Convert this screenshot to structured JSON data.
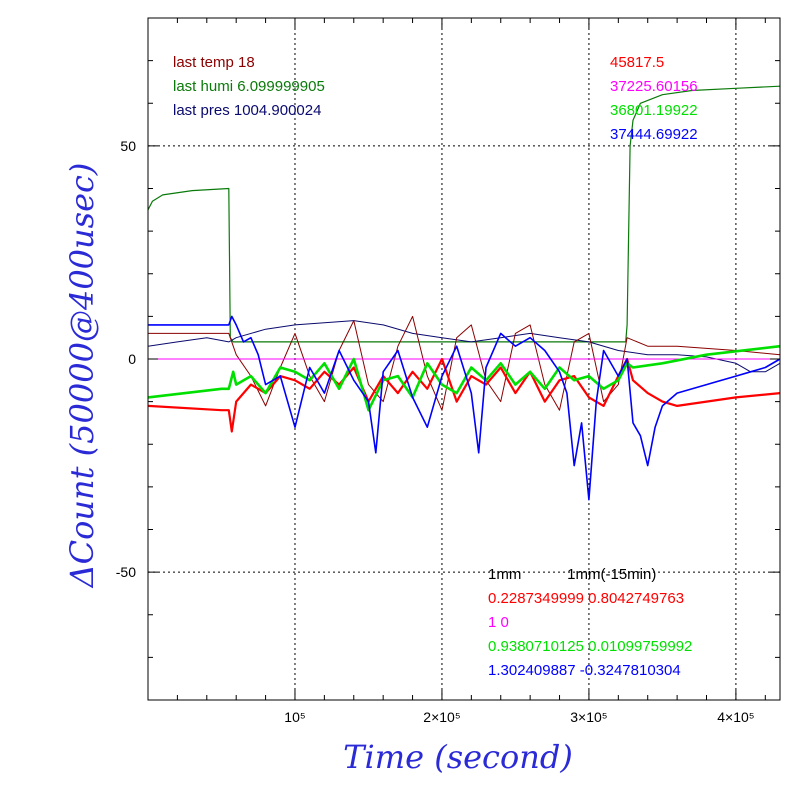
{
  "chart_data": {
    "type": "line",
    "xlabel": "Time (second)",
    "ylabel": "ΔCount (50000@400usec)",
    "xlim": [
      0,
      430000
    ],
    "ylim": [
      -80,
      80
    ],
    "x_ticks": [
      {
        "value": 100000,
        "label": "10⁵"
      },
      {
        "value": 200000,
        "label": "2×10⁵"
      },
      {
        "value": 300000,
        "label": "3×10⁵"
      },
      {
        "value": 400000,
        "label": "4×10⁵"
      }
    ],
    "y_ticks": [
      {
        "value": 50,
        "label": "50"
      },
      {
        "value": 0,
        "label": "0"
      },
      {
        "value": -50,
        "label": "-50"
      }
    ],
    "grid": true,
    "colors": {
      "humidity": "#0a7a0a",
      "temperature": "#8b0000",
      "pressure": "#0a0a6e",
      "ch_red": "#ff0000",
      "ch_magenta": "#ff00ff",
      "ch_green": "#00e000",
      "ch_blue": "#0000ff",
      "axis_title": "#2a2ad6"
    },
    "series": [
      {
        "key": "humidity",
        "x": [
          0,
          3000,
          10000,
          30000,
          55000,
          56000,
          58000,
          70000,
          100000,
          150000,
          200000,
          250000,
          300000,
          325000,
          326000,
          328000,
          330000,
          335000,
          350000,
          370000,
          400000,
          430000
        ],
        "values": [
          35,
          37,
          38.5,
          39.5,
          40,
          5,
          4,
          4,
          4,
          4,
          4,
          4,
          4,
          4,
          8,
          50,
          56,
          60,
          62,
          63,
          63.5,
          64
        ]
      },
      {
        "key": "pressure",
        "x": [
          0,
          20000,
          40000,
          55000,
          60000,
          80000,
          100000,
          120000,
          140000,
          160000,
          180000,
          200000,
          220000,
          240000,
          260000,
          280000,
          300000,
          320000,
          340000,
          360000,
          380000,
          400000,
          410000,
          420000,
          430000
        ],
        "values": [
          3,
          4,
          5,
          4,
          5,
          7,
          8,
          8.5,
          9,
          8,
          6,
          5,
          4,
          5,
          6,
          5,
          4,
          2,
          1,
          1,
          0.5,
          -1,
          -3,
          -3,
          -1
        ]
      },
      {
        "key": "temperature",
        "x": [
          0,
          20000,
          40000,
          55000,
          60000,
          70000,
          80000,
          90000,
          100000,
          110000,
          120000,
          130000,
          140000,
          150000,
          160000,
          170000,
          180000,
          190000,
          200000,
          210000,
          220000,
          230000,
          240000,
          250000,
          260000,
          270000,
          280000,
          290000,
          300000,
          310000,
          320000,
          326000,
          340000,
          360000,
          400000,
          430000
        ],
        "values": [
          6,
          6,
          6,
          6,
          1,
          -4,
          -11,
          -2,
          6,
          -4,
          -10,
          2,
          9,
          -6,
          -10,
          3,
          10,
          -4,
          -12,
          5,
          8,
          -5,
          -10,
          6,
          8,
          -6,
          -12,
          4,
          6,
          -10,
          -6,
          5,
          3,
          3,
          2,
          1
        ]
      },
      {
        "key": "ch_magenta",
        "x": [
          0,
          430000
        ],
        "values": [
          0,
          0
        ]
      },
      {
        "key": "ch_red",
        "x": [
          0,
          50000,
          55000,
          57000,
          60000,
          70000,
          80000,
          90000,
          100000,
          110000,
          120000,
          130000,
          140000,
          150000,
          160000,
          170000,
          180000,
          190000,
          200000,
          210000,
          220000,
          230000,
          240000,
          250000,
          260000,
          270000,
          280000,
          290000,
          300000,
          310000,
          320000,
          326000,
          330000,
          340000,
          350000,
          360000,
          380000,
          400000,
          430000
        ],
        "values": [
          -11,
          -12,
          -12,
          -17,
          -10,
          -6,
          -8,
          -4,
          -5,
          -7,
          -3,
          -6,
          -2,
          -10,
          -4,
          -8,
          -3,
          -7,
          0,
          -10,
          -4,
          -6,
          -2,
          -8,
          -3,
          -10,
          -5,
          -4,
          -9,
          -11,
          -4,
          0,
          -5,
          -8,
          -10,
          -11,
          -10,
          -9,
          -8
        ]
      },
      {
        "key": "ch_green",
        "x": [
          0,
          50000,
          55000,
          58000,
          60000,
          70000,
          80000,
          90000,
          100000,
          110000,
          120000,
          130000,
          140000,
          150000,
          160000,
          170000,
          180000,
          190000,
          200000,
          210000,
          220000,
          230000,
          240000,
          250000,
          260000,
          270000,
          280000,
          290000,
          300000,
          310000,
          320000,
          326000,
          330000,
          350000,
          380000,
          430000
        ],
        "values": [
          -9,
          -7,
          -7,
          -3,
          -6,
          -4,
          -8,
          -2,
          -3,
          -5,
          -1,
          -7,
          0,
          -12,
          -5,
          -4,
          -9,
          -1,
          -6,
          -8,
          -2,
          -5,
          -1,
          -6,
          -3,
          -7,
          -2,
          -5,
          -4,
          -7,
          -5,
          -1,
          -2,
          -1,
          1,
          3
        ]
      },
      {
        "key": "ch_blue",
        "x": [
          0,
          55000,
          57000,
          60000,
          65000,
          70000,
          75000,
          80000,
          90000,
          100000,
          110000,
          120000,
          130000,
          140000,
          150000,
          155000,
          160000,
          170000,
          180000,
          190000,
          200000,
          210000,
          220000,
          225000,
          230000,
          240000,
          250000,
          260000,
          270000,
          280000,
          285000,
          290000,
          295000,
          300000,
          305000,
          310000,
          320000,
          326000,
          330000,
          335000,
          340000,
          345000,
          350000,
          360000,
          380000,
          400000,
          410000,
          420000,
          430000
        ],
        "values": [
          8,
          8,
          10,
          8,
          4,
          5,
          1,
          -6,
          -4,
          -16,
          -2,
          -8,
          2,
          -5,
          -10,
          -22,
          -3,
          2,
          -9,
          -16,
          -4,
          3,
          -8,
          -22,
          -2,
          6,
          3,
          5,
          2,
          -3,
          -8,
          -25,
          -15,
          -33,
          -10,
          2,
          -4,
          0,
          -15,
          -18,
          -25,
          -16,
          -11,
          -8,
          -6,
          -4,
          -3,
          -2,
          0
        ]
      }
    ]
  },
  "annotations": {
    "left": [
      {
        "text": "last temp 18",
        "color": "#8b0000"
      },
      {
        "text": "last humi 6.099999905",
        "color": "#0a7a0a"
      },
      {
        "text": "last pres 1004.900024",
        "color": "#0a0a6e"
      }
    ],
    "right": [
      {
        "text": "45817.5",
        "color": "#ff0000"
      },
      {
        "text": "37225.60156",
        "color": "#ff00ff"
      },
      {
        "text": "36801.19922",
        "color": "#00e000"
      },
      {
        "text": "37444.69922",
        "color": "#0000ff"
      }
    ],
    "bottom": [
      {
        "text": "1mm           1mm(-15min)",
        "color": "#000000"
      },
      {
        "text": "0.2287349999 0.8042749763",
        "color": "#ff0000"
      },
      {
        "text": "1 0",
        "color": "#ff00ff"
      },
      {
        "text": "0.9380710125 0.01099759992",
        "color": "#00e000"
      },
      {
        "text": "1.302409887 -0.3247810304",
        "color": "#0000ff"
      }
    ]
  }
}
